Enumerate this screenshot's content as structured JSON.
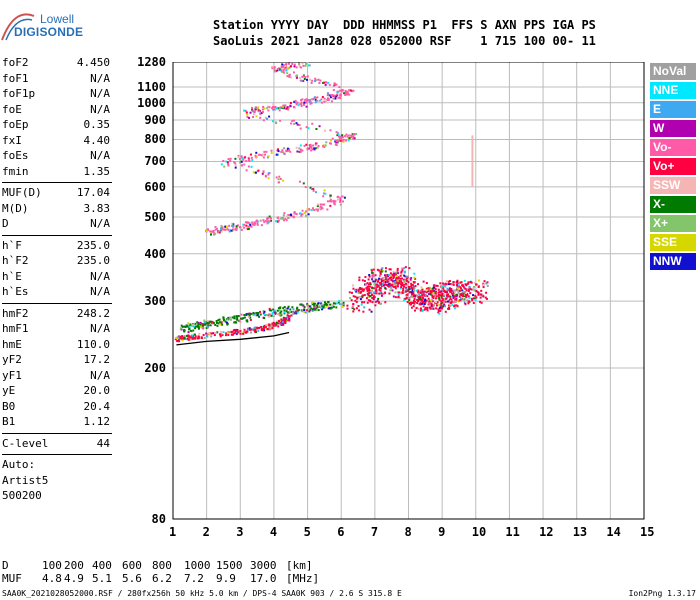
{
  "logo": {
    "line1": "Lowell",
    "line2": "DIGISONDE"
  },
  "header": {
    "line1": "Station YYYY DAY  DDD HHMMSS P1  FFS S AXN PPS IGA PS",
    "line2": "SaoLuis 2021 Jan28 028 052000 RSF    1 715 100 00- 11"
  },
  "params": {
    "group1": [
      {
        "name": "foF2",
        "value": "4.450"
      },
      {
        "name": "foF1",
        "value": "N/A"
      },
      {
        "name": "foF1p",
        "value": "N/A"
      },
      {
        "name": "foE",
        "value": "N/A"
      },
      {
        "name": "foEp",
        "value": "0.35"
      },
      {
        "name": "fxI",
        "value": "4.40"
      },
      {
        "name": "foEs",
        "value": "N/A"
      },
      {
        "name": "fmin",
        "value": "1.35"
      }
    ],
    "group2": [
      {
        "name": "MUF(D)",
        "value": "17.04"
      },
      {
        "name": "M(D)",
        "value": "3.83"
      },
      {
        "name": "D",
        "value": "N/A"
      }
    ],
    "group3": [
      {
        "name": "h`F",
        "value": "235.0"
      },
      {
        "name": "h`F2",
        "value": "235.0"
      },
      {
        "name": "h`E",
        "value": "N/A"
      },
      {
        "name": "h`Es",
        "value": "N/A"
      }
    ],
    "group4": [
      {
        "name": "hmF2",
        "value": "248.2"
      },
      {
        "name": "hmF1",
        "value": "N/A"
      },
      {
        "name": "hmE",
        "value": "110.0"
      },
      {
        "name": "yF2",
        "value": "17.2"
      },
      {
        "name": "yF1",
        "value": "N/A"
      },
      {
        "name": "yE",
        "value": "20.0"
      },
      {
        "name": "B0",
        "value": "20.4"
      },
      {
        "name": "B1",
        "value": "1.12"
      }
    ],
    "clevel": {
      "name": "C-level",
      "value": "44"
    },
    "auto": [
      "Auto:",
      "Artist5",
      "500200"
    ]
  },
  "legend": [
    {
      "label": "NoVal",
      "color": "#a0a0a0"
    },
    {
      "label": "NNE",
      "color": "#00e8ff"
    },
    {
      "label": "E",
      "color": "#3ea8f0"
    },
    {
      "label": "W",
      "color": "#b000b0"
    },
    {
      "label": "Vo-",
      "color": "#ff5aa8"
    },
    {
      "label": "Vo+",
      "color": "#ff0040"
    },
    {
      "label": "SSW",
      "color": "#f6b5b5"
    },
    {
      "label": "X-",
      "color": "#007a00"
    },
    {
      "label": "X+",
      "color": "#84c46a"
    },
    {
      "label": "SSE",
      "color": "#d6d600"
    },
    {
      "label": "NNW",
      "color": "#1010d0"
    }
  ],
  "chart_data": {
    "type": "scatter",
    "x_ticks": [
      1,
      2,
      3,
      4,
      5,
      6,
      7,
      8,
      9,
      10,
      11,
      12,
      13,
      14,
      15
    ],
    "y_ticks": [
      80,
      200,
      300,
      400,
      500,
      600,
      700,
      800,
      900,
      1000,
      1100,
      1280
    ],
    "xlim": [
      1,
      15
    ],
    "ylim": [
      80,
      1280
    ],
    "xscale": "linear",
    "yscale": "log",
    "grid": true,
    "legend_placement": "right",
    "traces": [
      {
        "name": "O-trace F2 (1st hop)",
        "color": "#ff0040",
        "points": [
          [
            1.1,
            240
          ],
          [
            1.6,
            243
          ],
          [
            2.5,
            248
          ],
          [
            3.2,
            252
          ],
          [
            3.8,
            258
          ],
          [
            4.2,
            265
          ],
          [
            4.45,
            275
          ]
        ]
      },
      {
        "name": "X-trace F2 (1st hop)",
        "color": "#007a00",
        "points": [
          [
            1.3,
            255
          ],
          [
            2.0,
            262
          ],
          [
            3.0,
            272
          ],
          [
            4.0,
            282
          ],
          [
            5.0,
            290
          ],
          [
            6.0,
            298
          ]
        ]
      },
      {
        "name": "Multi-hop echoes",
        "color": "#ff5aa8",
        "points": [
          [
            2.0,
            460
          ],
          [
            3.0,
            475
          ],
          [
            4.0,
            495
          ],
          [
            5.0,
            520
          ],
          [
            6.0,
            560
          ],
          [
            2.5,
            700
          ],
          [
            4.0,
            740
          ],
          [
            5.5,
            780
          ],
          [
            6.3,
            820
          ],
          [
            3.0,
            945
          ],
          [
            4.5,
            990
          ],
          [
            5.5,
            1030
          ],
          [
            6.2,
            1080
          ],
          [
            4.0,
            1230
          ],
          [
            5.0,
            1280
          ]
        ]
      },
      {
        "name": "Spread F",
        "color": "#ff0040",
        "points": [
          [
            6.5,
            300
          ],
          [
            7.0,
            330
          ],
          [
            7.5,
            350
          ],
          [
            8.0,
            320
          ],
          [
            8.5,
            300
          ],
          [
            9.0,
            310
          ],
          [
            9.5,
            320
          ],
          [
            10.0,
            320
          ]
        ]
      },
      {
        "name": "Vertical marker",
        "color": "#f6b5b5",
        "points": [
          [
            9.9,
            600
          ],
          [
            9.9,
            820
          ]
        ]
      }
    ],
    "profile_curve": [
      [
        1.1,
        230
      ],
      [
        2.0,
        235
      ],
      [
        3.0,
        238
      ],
      [
        4.0,
        243
      ],
      [
        4.45,
        248
      ]
    ]
  },
  "footer": {
    "d_label": "D",
    "d_values": [
      "100",
      "200",
      "400",
      "600",
      "800",
      "1000",
      "1500",
      "3000",
      "[km]"
    ],
    "muf_label": "MUF",
    "muf_values": [
      "4.8",
      "4.9",
      "5.1",
      "5.6",
      "6.2",
      "7.2",
      "9.9",
      "17.0",
      "[MHz]"
    ]
  },
  "status": {
    "left": "SAA0K_2021028052000.RSF / 280fx256h 50 kHz 5.0 km / DPS-4 SAA0K 903 / 2.6 S 315.8 E",
    "right": "Ion2Png 1.3.17"
  }
}
